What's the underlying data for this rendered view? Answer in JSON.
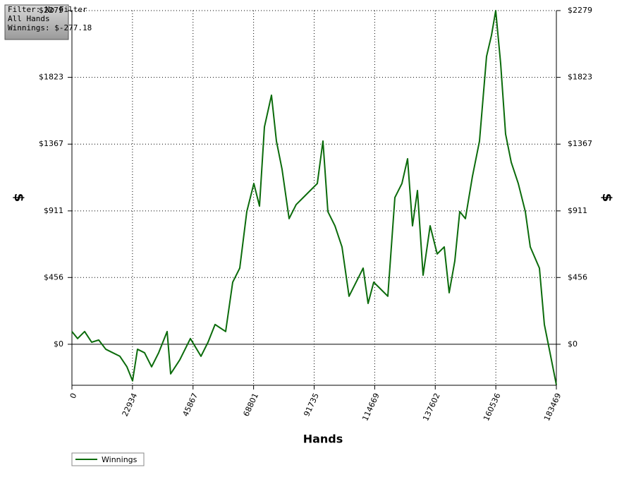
{
  "chart_data": {
    "type": "line",
    "info_box": [
      "Filter: No Filter",
      "All Hands",
      "Winnings: $-277.18"
    ],
    "x_label": "Hands",
    "y_label": "$",
    "y2_label": "$",
    "x": [
      0,
      2136,
      4807,
      7477,
      10148,
      12818,
      15489,
      18159,
      20830,
      22966,
      24835,
      27506,
      30176,
      32847,
      36052,
      37387,
      40858,
      44864,
      48870,
      51541,
      54211,
      58217,
      60888,
      63558,
      66229,
      68899,
      71035,
      72905,
      75575,
      77444,
      79581,
      82251,
      84922,
      87592,
      90263,
      92933,
      95070,
      96938,
      99610,
      102280,
      104951,
      107621,
      110292,
      112161,
      114297,
      116968,
      119638,
      122309,
      124979,
      127116,
      128985,
      130855,
      132991,
      135661,
      138332,
      141002,
      142872,
      145008,
      146878,
      149014,
      151685,
      154355,
      157026,
      158895,
      160497,
      162366,
      164236,
      166372,
      169043,
      171713,
      173583,
      177054,
      178923,
      181060,
      183469
    ],
    "series": [
      {
        "name": "Winnings",
        "color": "#0b6b0b",
        "values": [
          87,
          39,
          87,
          14,
          29,
          -34,
          -58,
          -82,
          -154,
          -250,
          -34,
          -58,
          -154,
          -58,
          87,
          -202,
          -106,
          39,
          -82,
          14,
          135,
          87,
          424,
          520,
          906,
          1098,
          944,
          1484,
          1701,
          1388,
          1195,
          858,
          954,
          1002,
          1050,
          1098,
          1388,
          906,
          809,
          665,
          328,
          424,
          520,
          279,
          424,
          376,
          328,
          1002,
          1098,
          1267,
          809,
          1050,
          472,
          809,
          617,
          665,
          352,
          569,
          906,
          858,
          1147,
          1388,
          1966,
          2110,
          2279,
          1918,
          1436,
          1243,
          1098,
          906,
          665,
          520,
          135,
          -58,
          -277.18
        ]
      }
    ],
    "xlim": [
      0,
      183469
    ],
    "ylim": [
      -280,
      2279
    ],
    "xticks": [
      0,
      22934,
      45867,
      68801,
      91735,
      114669,
      137602,
      160536,
      183469
    ],
    "yticks": [
      {
        "value": 0,
        "label": "$0"
      },
      {
        "value": 456,
        "label": "$456"
      },
      {
        "value": 911,
        "label": "$911"
      },
      {
        "value": 1367,
        "label": "$1367"
      },
      {
        "value": 1823,
        "label": "$1823"
      },
      {
        "value": 2279,
        "label": "$2279"
      }
    ],
    "grid": true,
    "legend": "bottom-left"
  }
}
